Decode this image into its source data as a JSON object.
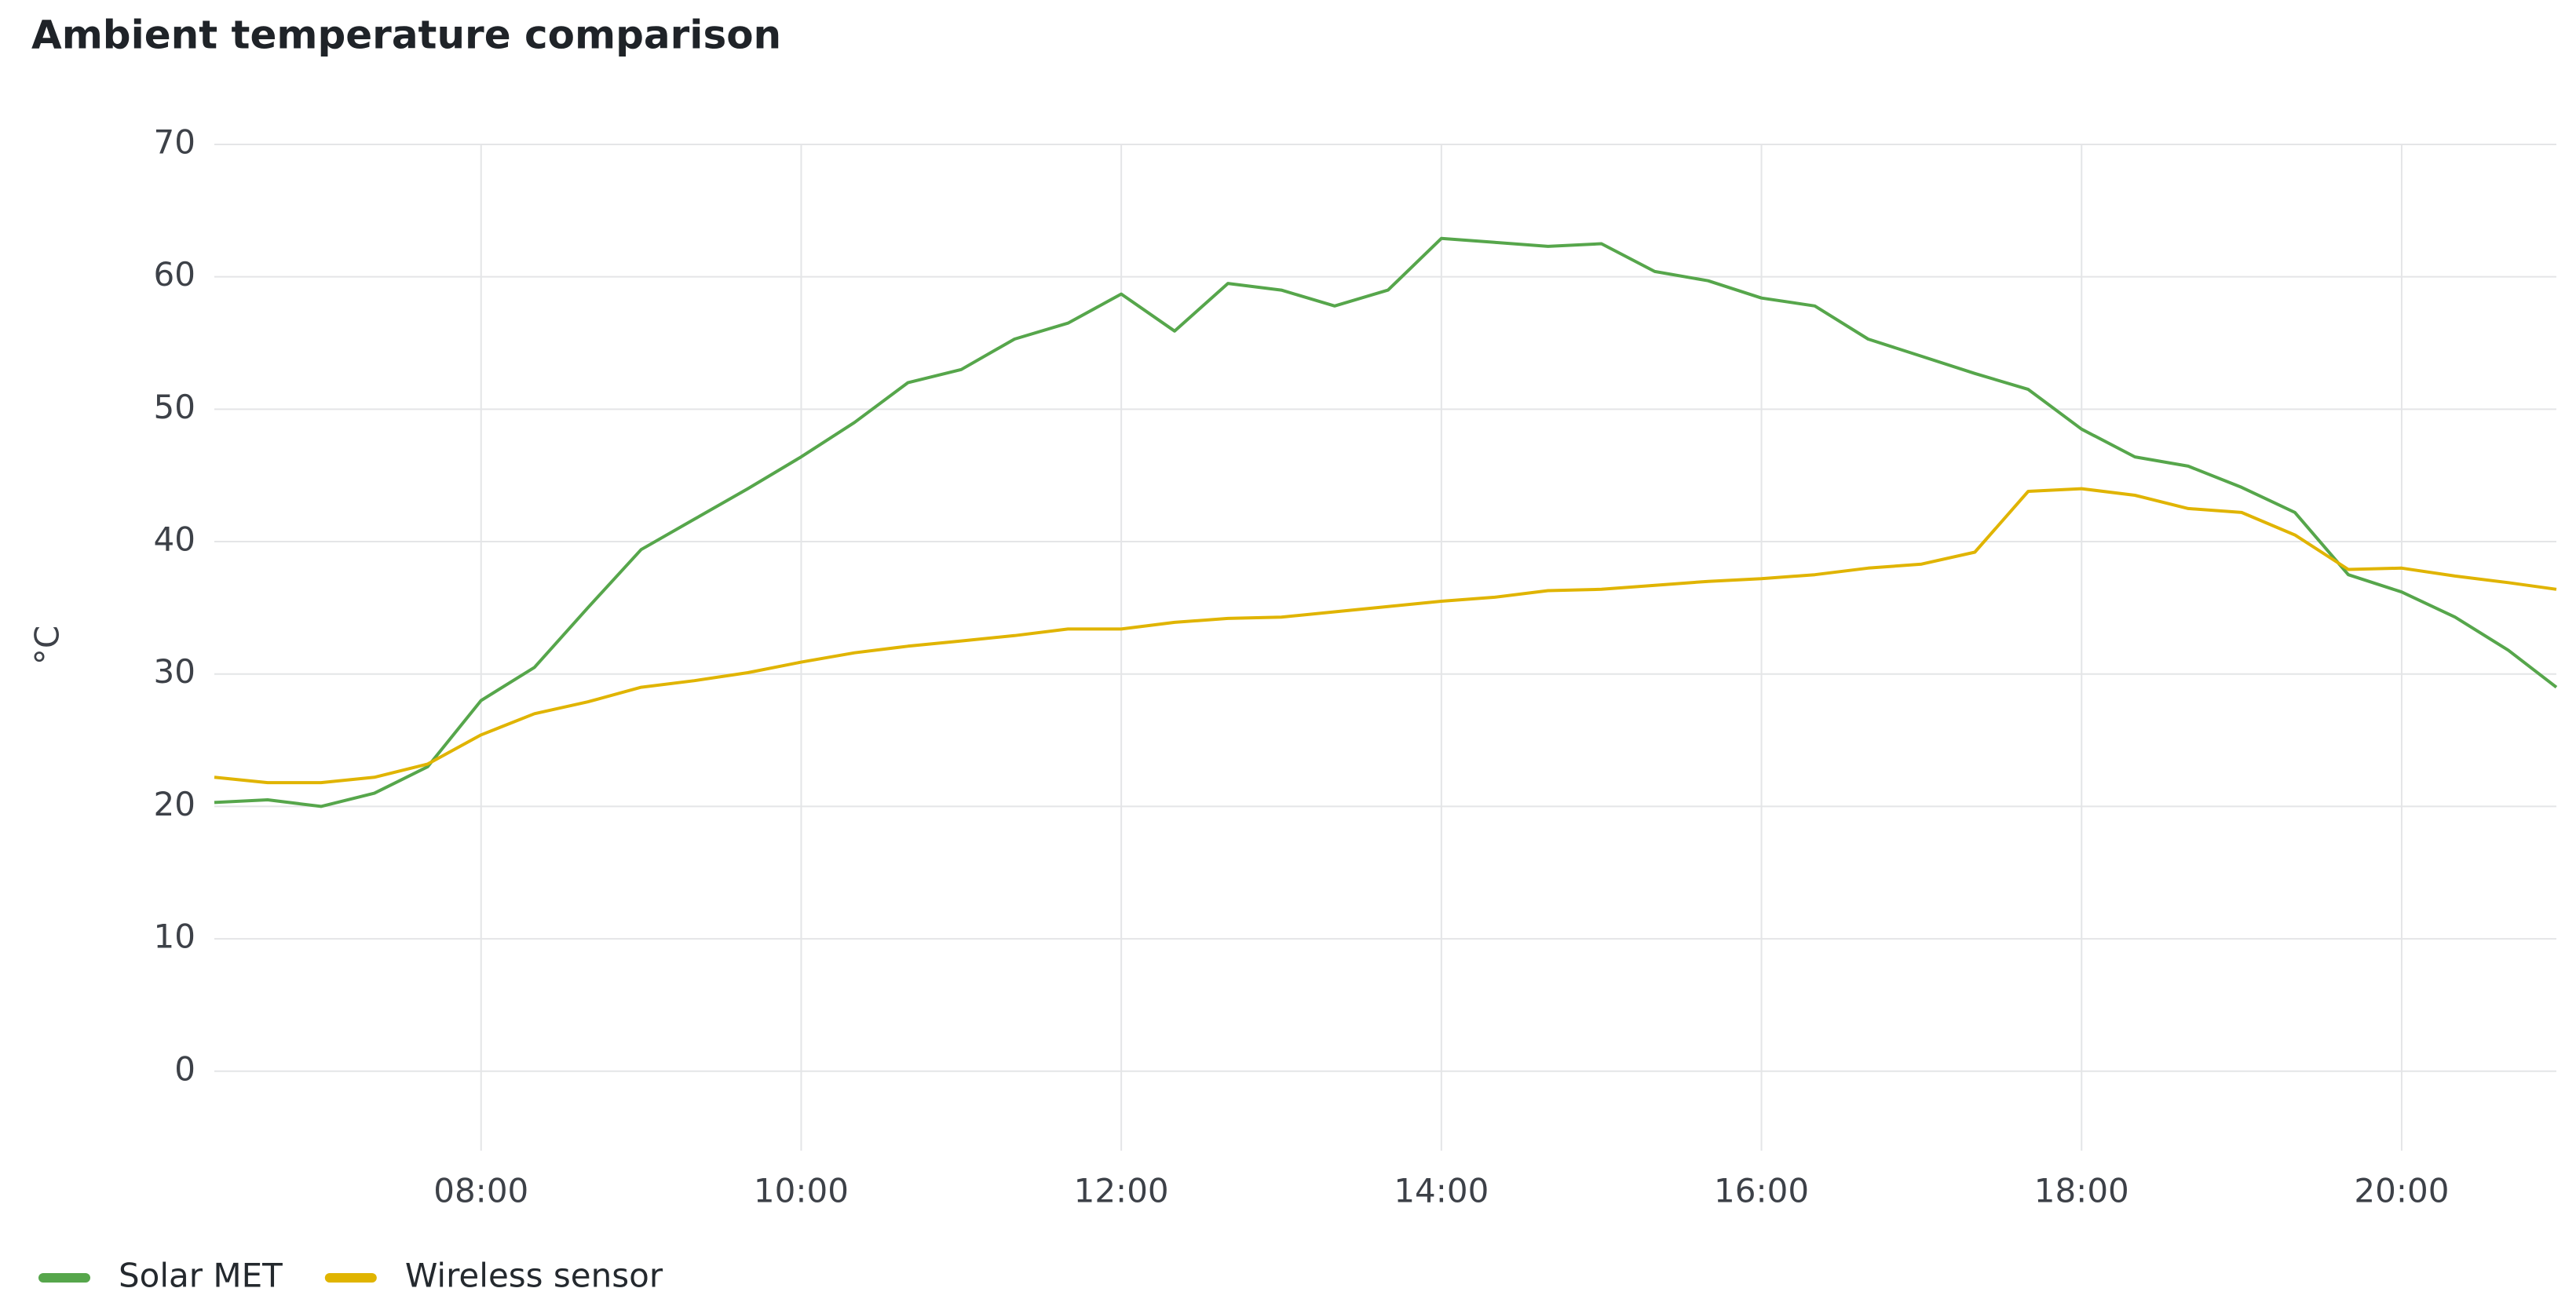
{
  "chart_data": {
    "type": "line",
    "title": "Ambient temperature comparison",
    "y_label": "°C",
    "x": [
      "06:20",
      "06:40",
      "07:00",
      "07:20",
      "07:40",
      "08:00",
      "08:20",
      "08:40",
      "09:00",
      "09:20",
      "09:40",
      "10:00",
      "10:20",
      "10:40",
      "11:00",
      "11:20",
      "11:40",
      "12:00",
      "12:20",
      "12:40",
      "13:00",
      "13:20",
      "13:40",
      "14:00",
      "14:20",
      "14:40",
      "15:00",
      "15:20",
      "15:40",
      "16:00",
      "16:20",
      "16:40",
      "17:00",
      "17:20",
      "17:40",
      "18:00",
      "18:20",
      "18:40",
      "19:00",
      "19:20",
      "19:40",
      "20:00",
      "20:20",
      "20:40",
      "20:58"
    ],
    "series": [
      {
        "name": "Solar MET",
        "color": "#56a64b",
        "values": [
          20.3,
          20.5,
          20.0,
          21.0,
          23.0,
          28.0,
          30.5,
          35.0,
          39.4,
          41.7,
          44.0,
          46.4,
          49.0,
          52.0,
          53.0,
          55.3,
          56.5,
          58.7,
          55.9,
          59.5,
          59.0,
          57.8,
          59.0,
          62.9,
          62.6,
          62.3,
          62.5,
          60.4,
          59.7,
          58.4,
          57.8,
          55.3,
          54.0,
          52.7,
          51.5,
          48.5,
          46.4,
          45.7,
          44.1,
          42.2,
          37.5,
          36.2,
          34.3,
          31.8,
          29.0
        ]
      },
      {
        "name": "Wireless sensor",
        "color": "#e0b400",
        "values": [
          22.2,
          21.8,
          21.8,
          22.2,
          23.2,
          25.4,
          27.0,
          27.9,
          29.0,
          29.5,
          30.1,
          30.9,
          31.6,
          32.1,
          32.5,
          32.9,
          33.4,
          33.4,
          33.9,
          34.2,
          34.3,
          34.7,
          35.1,
          35.5,
          35.8,
          36.3,
          36.4,
          36.7,
          37.0,
          37.2,
          37.5,
          38.0,
          38.3,
          39.2,
          43.8,
          44.0,
          43.5,
          42.5,
          42.2,
          40.5,
          37.9,
          38.0,
          37.4,
          36.9,
          36.4
        ]
      }
    ],
    "xlim": [
      "06:20",
      "20:58"
    ],
    "xticks": [
      "08:00",
      "10:00",
      "12:00",
      "14:00",
      "16:00",
      "18:00",
      "20:00"
    ],
    "ylim": [
      -6,
      70
    ],
    "yticks": [
      0,
      10,
      20,
      30,
      40,
      50,
      60,
      70
    ],
    "grid": true,
    "legend": "bottom-left"
  }
}
